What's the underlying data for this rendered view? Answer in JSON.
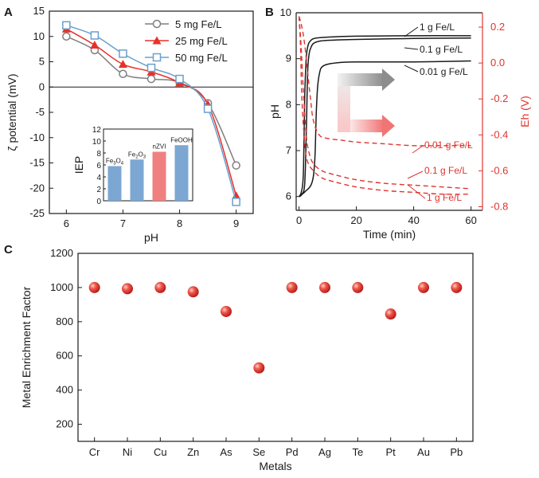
{
  "chart_data": [
    {
      "panel": "A",
      "type": "line",
      "xlabel": "pH",
      "ylabel": "ζ potential (mV)",
      "xlim": [
        5.7,
        9.3
      ],
      "ylim": [
        -25,
        15
      ],
      "xticks": [
        "6",
        "7",
        "8",
        "9"
      ],
      "yticks": [
        "15",
        "10",
        "5",
        "0",
        "-5",
        "-10",
        "-15",
        "-20",
        "-25"
      ],
      "legend_position": "top-right",
      "series": [
        {
          "name": "5 mg Fe/L",
          "color": "#7f7f7f",
          "marker": "circle",
          "x": [
            6,
            6.5,
            7,
            7.5,
            8,
            8.5,
            9
          ],
          "y": [
            10,
            7.3,
            2.6,
            1.6,
            0.9,
            -3.2,
            -15.5
          ]
        },
        {
          "name": "25 mg Fe/L",
          "color": "#e8302a",
          "marker": "triangle",
          "x": [
            6,
            6.5,
            7,
            7.5,
            8,
            8.5,
            9
          ],
          "y": [
            11.5,
            8.3,
            4.5,
            3.0,
            0.8,
            -3.4,
            -21.5
          ]
        },
        {
          "name": "50 mg Fe/L",
          "color": "#6a9fcf",
          "marker": "square",
          "x": [
            6,
            6.5,
            7,
            7.5,
            8,
            8.5,
            9
          ],
          "y": [
            12.2,
            10.2,
            6.6,
            3.8,
            1.6,
            -4.3,
            -22.7
          ]
        }
      ],
      "inset": {
        "type": "bar",
        "ylabel": "IEP",
        "ylim": [
          0,
          12
        ],
        "yticks": [
          "12",
          "10",
          "8",
          "6",
          "4",
          "2",
          "0"
        ],
        "values": [
          5.8,
          6.9,
          8.2,
          9.3
        ],
        "bar_colors": [
          "#7ba7d2",
          "#7ba7d2",
          "#f08080",
          "#7ba7d2"
        ]
      }
    },
    {
      "panel": "B",
      "type": "line",
      "xlabel": "Time (min)",
      "ylabel": "pH",
      "ylabel_right": "Eh (V)",
      "xlim": [
        -1,
        64
      ],
      "ylim": [
        5.7,
        10
      ],
      "ylim_right": [
        -0.82,
        0.28
      ],
      "xticks": [
        "0",
        "20",
        "40",
        "60"
      ],
      "yticks": [
        "10",
        "9",
        "8",
        "7",
        "6"
      ],
      "yticks_right": [
        "0.2",
        "0.0",
        "-0.2",
        "-0.4",
        "-0.6",
        "-0.8"
      ],
      "series_pH": [
        {
          "name": "1 g Fe/L",
          "color": "#1a1a1a",
          "x": [
            0,
            0.8,
            1.5,
            2.0,
            2.5,
            3.0,
            3.5,
            4.5,
            6,
            10,
            20,
            40,
            60
          ],
          "y": [
            6.0,
            6.1,
            6.5,
            8.2,
            9.0,
            9.25,
            9.35,
            9.42,
            9.45,
            9.47,
            9.49,
            9.5,
            9.5
          ]
        },
        {
          "name": "0.1 g Fe/L",
          "color": "#1a1a1a",
          "x": [
            0,
            1,
            2.0,
            2.6,
            3.0,
            3.5,
            4.2,
            5,
            7,
            10,
            20,
            40,
            60
          ],
          "y": [
            6.0,
            6.05,
            6.3,
            7.6,
            8.7,
            9.1,
            9.25,
            9.33,
            9.38,
            9.4,
            9.42,
            9.44,
            9.45
          ]
        },
        {
          "name": "0.01 g Fe/L",
          "color": "#1a1a1a",
          "x": [
            0,
            2,
            4.5,
            5.5,
            6.0,
            6.5,
            7.2,
            8,
            10,
            15,
            20,
            40,
            60
          ],
          "y": [
            6.0,
            6.1,
            6.3,
            6.8,
            7.8,
            8.4,
            8.7,
            8.82,
            8.88,
            8.92,
            8.93,
            8.93,
            8.95
          ]
        }
      ],
      "series_Eh": [
        {
          "name": "0.01 g Fe/L",
          "color": "#e0342f",
          "x": [
            0,
            1,
            2,
            3,
            4,
            5,
            7,
            10,
            15,
            20,
            30,
            40,
            50,
            60
          ],
          "y": [
            0.26,
            0.2,
            0.1,
            -0.05,
            -0.2,
            -0.32,
            -0.4,
            -0.42,
            -0.43,
            -0.44,
            -0.45,
            -0.46,
            -0.46,
            -0.46
          ]
        },
        {
          "name": "0.1 g Fe/L",
          "color": "#e0342f",
          "x": [
            0,
            0.7,
            1.5,
            2.5,
            3.5,
            5,
            8,
            12,
            20,
            30,
            40,
            50,
            60
          ],
          "y": [
            0.26,
            0.1,
            -0.15,
            -0.4,
            -0.5,
            -0.56,
            -0.6,
            -0.62,
            -0.65,
            -0.67,
            -0.68,
            -0.69,
            -0.7
          ]
        },
        {
          "name": "1 g Fe/L",
          "color": "#e0342f",
          "x": [
            0,
            0.5,
            1,
            2,
            3,
            5,
            8,
            12,
            20,
            30,
            40,
            50,
            60
          ],
          "y": [
            0.26,
            0.1,
            -0.2,
            -0.45,
            -0.55,
            -0.6,
            -0.64,
            -0.66,
            -0.69,
            -0.71,
            -0.72,
            -0.73,
            -0.73
          ]
        }
      ]
    },
    {
      "panel": "C",
      "type": "scatter",
      "xlabel": "Metals",
      "ylabel": "Metal Enrichment Factor",
      "ylim": [
        100,
        1200
      ],
      "yticks": [
        "1200",
        "1000",
        "800",
        "600",
        "400",
        "200"
      ],
      "categories": [
        "Cr",
        "Ni",
        "Cu",
        "Zn",
        "As",
        "Se",
        "Pd",
        "Ag",
        "Te",
        "Pt",
        "Au",
        "Pb"
      ],
      "values": [
        1000,
        993,
        1000,
        975,
        860,
        530,
        1000,
        1000,
        1000,
        845,
        1000,
        1000
      ],
      "color": "#e8302a"
    }
  ],
  "labels": {
    "panel_a": "A",
    "panel_b": "B",
    "panel_c": "C",
    "inset_cats": [
      "Fe",
      "Fe",
      "nZVI",
      "FeOOH"
    ],
    "inset_subs": [
      "3",
      "2",
      "",
      ""
    ],
    "inset_mid": [
      "",
      "O",
      "",
      ""
    ],
    "inset_sub2": [
      "",
      "3",
      "",
      ""
    ],
    "inset_fe3o4_O": "O",
    "inset_fe3o4_sub": "4"
  }
}
